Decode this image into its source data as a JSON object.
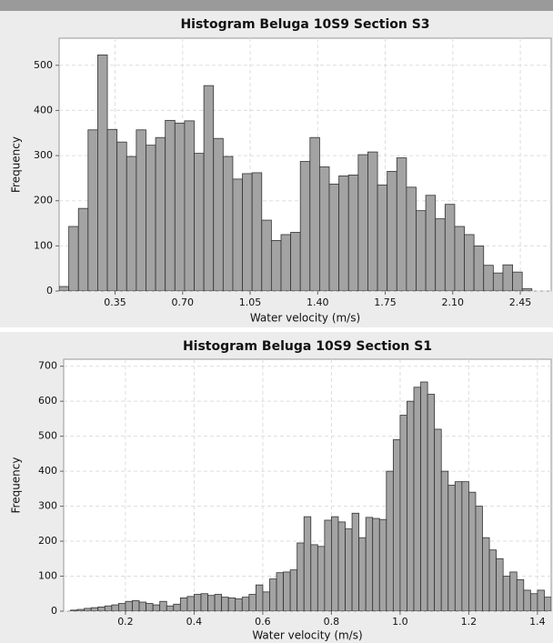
{
  "chart_data": [
    {
      "type": "histogram",
      "title": "Histogram Beluga 10S9   Section S3",
      "x_label": "Water velocity (m/s)",
      "y_label": "Frequency",
      "bins": [
        0.06,
        0.11,
        0.16,
        0.21,
        0.26,
        0.31,
        0.36,
        0.41,
        0.46,
        0.51,
        0.56,
        0.61,
        0.66,
        0.71,
        0.76,
        0.81,
        0.86,
        0.91,
        0.96,
        1.01,
        1.06,
        1.11,
        1.16,
        1.21,
        1.26,
        1.31,
        1.36,
        1.41,
        1.46,
        1.51,
        1.56,
        1.61,
        1.66,
        1.71,
        1.76,
        1.81,
        1.86,
        1.91,
        1.96,
        2.01,
        2.06,
        2.11,
        2.16,
        2.21,
        2.26,
        2.31,
        2.36,
        2.41,
        2.46,
        2.51
      ],
      "values": [
        10,
        143,
        183,
        357,
        523,
        358,
        330,
        298,
        357,
        323,
        340,
        378,
        372,
        377,
        305,
        455,
        338,
        298,
        248,
        260,
        262,
        157,
        112,
        125,
        130,
        287,
        340,
        275,
        237,
        255,
        257,
        302,
        308,
        235,
        265,
        295,
        230,
        178,
        212,
        160,
        192,
        143,
        125,
        100,
        57,
        40,
        58,
        42,
        5
      ],
      "color": "#a3a3a3",
      "xlim": [
        0.06,
        2.61
      ],
      "xticks": [
        0.35,
        {
          "value": 0.7,
          "label": "0.70"
        },
        1.05,
        {
          "value": 1.4,
          "label": "1.40"
        },
        1.75,
        {
          "value": 2.1,
          "label": "2.10"
        },
        2.45
      ],
      "ylim": [
        0,
        560
      ],
      "yticks": [
        0,
        100,
        200,
        300,
        400,
        500
      ],
      "grid": true
    },
    {
      "type": "histogram",
      "title": "Histogram Beluga 10S9   Section S1",
      "x_label": "Water velocity (m/s)",
      "y_label": "Frequency",
      "bins": [
        0.04,
        0.06,
        0.08,
        0.1,
        0.12,
        0.14,
        0.16,
        0.18,
        0.2,
        0.22,
        0.24,
        0.26,
        0.28,
        0.3,
        0.32,
        0.34,
        0.36,
        0.38,
        0.4,
        0.42,
        0.44,
        0.46,
        0.48,
        0.5,
        0.52,
        0.54,
        0.56,
        0.58,
        0.6,
        0.62,
        0.64,
        0.66,
        0.68,
        0.7,
        0.72,
        0.74,
        0.76,
        0.78,
        0.8,
        0.82,
        0.84,
        0.86,
        0.88,
        0.9,
        0.92,
        0.94,
        0.96,
        0.98,
        1.0,
        1.02,
        1.04,
        1.06,
        1.08,
        1.1,
        1.12,
        1.14,
        1.16,
        1.18,
        1.2,
        1.22,
        1.24,
        1.26,
        1.28,
        1.3,
        1.32,
        1.34,
        1.36,
        1.38,
        1.4,
        1.42,
        1.44
      ],
      "values": [
        3,
        5,
        8,
        10,
        12,
        15,
        18,
        22,
        28,
        30,
        26,
        22,
        18,
        28,
        15,
        20,
        38,
        42,
        48,
        50,
        45,
        48,
        40,
        38,
        35,
        40,
        48,
        75,
        55,
        92,
        110,
        112,
        118,
        195,
        270,
        190,
        185,
        260,
        270,
        255,
        235,
        280,
        210,
        268,
        265,
        262,
        400,
        490,
        560,
        600,
        640,
        655,
        620,
        520,
        400,
        360,
        370,
        370,
        340,
        300,
        210,
        175,
        150,
        100,
        112,
        90,
        60,
        50,
        60,
        40
      ],
      "color": "#a3a3a3",
      "xlim": [
        0.02,
        1.44
      ],
      "xticks": [
        0.2,
        0.4,
        0.6,
        0.8,
        {
          "value": 1.0,
          "label": "1.0"
        },
        1.2,
        1.4
      ],
      "ylim": [
        0,
        720
      ],
      "yticks": [
        0,
        100,
        200,
        300,
        400,
        500,
        600,
        700
      ],
      "grid": true
    }
  ]
}
